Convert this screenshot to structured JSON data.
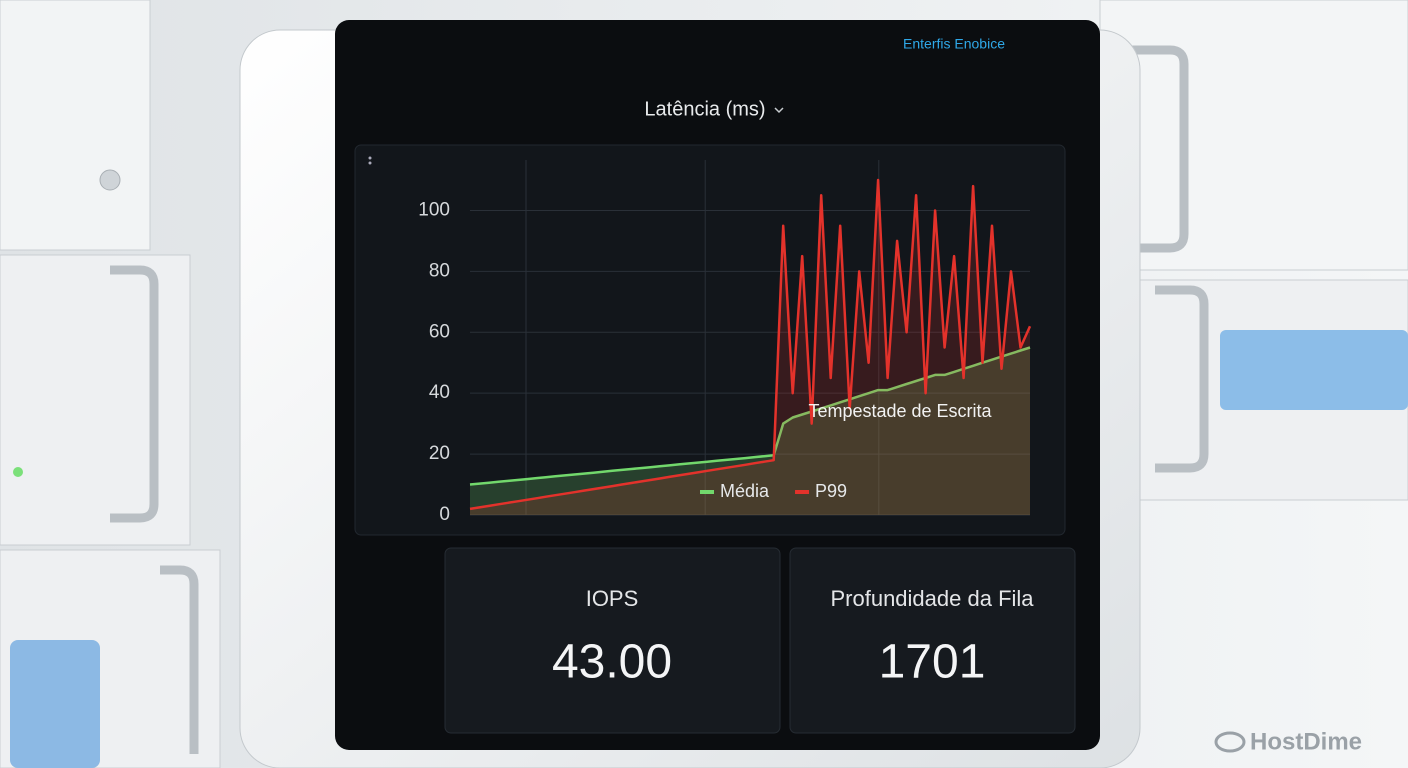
{
  "header": {
    "brand": "Enterfis Enobice"
  },
  "chart_data": {
    "type": "line",
    "title": "Latência (ms)",
    "annotation": "Tempestade de Escrita",
    "ylim": [
      0,
      110
    ],
    "yticks": [
      0,
      20,
      40,
      60,
      80,
      100
    ],
    "grid": true,
    "legend": "bottom",
    "series": [
      {
        "name": "Média",
        "color": "#72d86c",
        "values": [
          10,
          10.3,
          10.6,
          10.9,
          11.2,
          11.5,
          11.8,
          12.1,
          12.4,
          12.7,
          13,
          13.3,
          13.6,
          13.9,
          14.2,
          14.5,
          14.8,
          15.1,
          15.4,
          15.7,
          16,
          16.3,
          16.6,
          16.9,
          17.2,
          17.5,
          17.8,
          18.1,
          18.4,
          18.7,
          19,
          19.3,
          19.6,
          30,
          32,
          33,
          34,
          35,
          36,
          37,
          38,
          39,
          40,
          41,
          41,
          42,
          43,
          44,
          45,
          46,
          46,
          47,
          48,
          49,
          50,
          51,
          52,
          53,
          54,
          55
        ]
      },
      {
        "name": "P99",
        "color": "#e3322b",
        "values": [
          2,
          2.5,
          3,
          3.5,
          4,
          4.5,
          5,
          5.5,
          6,
          6.5,
          7,
          7.5,
          8,
          8.5,
          9,
          9.5,
          10,
          10.5,
          11,
          11.5,
          12,
          12.5,
          13,
          13.5,
          14,
          14.5,
          15,
          15.5,
          16,
          16.5,
          17,
          17.5,
          18,
          95,
          40,
          85,
          30,
          105,
          45,
          95,
          35,
          80,
          50,
          110,
          45,
          90,
          60,
          105,
          40,
          100,
          55,
          85,
          45,
          108,
          50,
          95,
          48,
          80,
          55,
          62
        ]
      }
    ]
  },
  "panels": [
    {
      "label": "IOPS",
      "value": "43.00"
    },
    {
      "label": "Profundidade da Fila",
      "value": "1701"
    }
  ],
  "watermark": "HostDime"
}
